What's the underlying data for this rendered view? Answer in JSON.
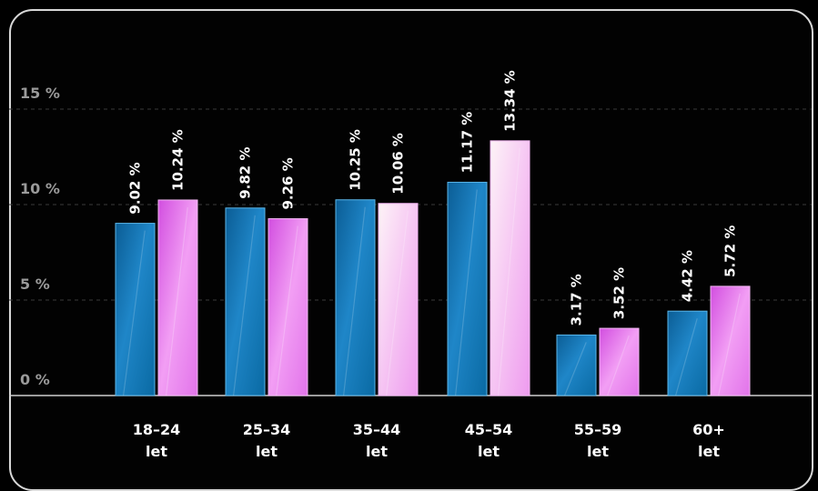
{
  "chart_data": {
    "type": "bar",
    "categories": [
      [
        "18–24",
        "let"
      ],
      [
        "25–34",
        "let"
      ],
      [
        "35–44",
        "let"
      ],
      [
        "45–54",
        "let"
      ],
      [
        "55–59",
        "let"
      ],
      [
        "60+",
        "let"
      ]
    ],
    "series": [
      {
        "color": "#1f7fc0",
        "values": [
          9.02,
          9.82,
          10.25,
          11.17,
          3.17,
          4.42
        ],
        "labels": [
          "9.02 %",
          "9.82 %",
          "10.25 %",
          "11.17 %",
          "3.17 %",
          "4.42 %"
        ]
      },
      {
        "color": "#e06fe6",
        "values": [
          10.24,
          9.26,
          10.06,
          13.34,
          3.52,
          5.72
        ],
        "labels": [
          "10.24 %",
          "9.26 %",
          "10.06 %",
          "13.34 %",
          "3.52 %",
          "5.72 %"
        ]
      }
    ],
    "y_ticks": [
      {
        "value": 0,
        "label": "0 %"
      },
      {
        "value": 5,
        "label": "5 %"
      },
      {
        "value": 10,
        "label": "10 %"
      },
      {
        "value": 15,
        "label": "15 %"
      }
    ],
    "ylim": [
      0,
      15
    ],
    "grid": true
  }
}
